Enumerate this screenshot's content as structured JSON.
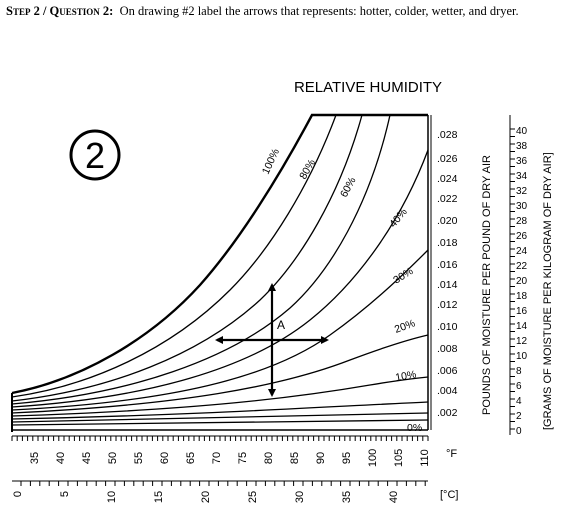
{
  "question": {
    "step_label": "Step 2 / Question 2:",
    "text": "On drawing #2 label the arrows that represents: hotter, colder, wetter, and dryer."
  },
  "drawing_number": "2",
  "chart_title": "RELATIVE HUMIDITY",
  "point_label": "A",
  "rh_curves": [
    {
      "label": "100%",
      "rh": 100
    },
    {
      "label": "80%",
      "rh": 80
    },
    {
      "label": "60%",
      "rh": 60
    },
    {
      "label": "40%",
      "rh": 40
    },
    {
      "label": "30%",
      "rh": 30
    },
    {
      "label": "20%",
      "rh": 20
    },
    {
      "label": "10%",
      "rh": 10
    },
    {
      "label": "0%",
      "rh": 0
    }
  ],
  "right_axis_lb": {
    "label": "POUNDS OF MOISTURE PER POUND OF DRY AIR",
    "ticks": [
      ".028",
      ".026",
      ".024",
      ".022",
      ".020",
      ".018",
      ".016",
      ".014",
      ".012",
      ".010",
      ".008",
      ".006",
      ".004",
      ".002"
    ]
  },
  "right_axis_g": {
    "label": "[GRAMS OF MOISTURE PER KILOGRAM OF DRY AIR]",
    "ticks": [
      "40",
      "38",
      "36",
      "34",
      "32",
      "30",
      "28",
      "26",
      "24",
      "22",
      "20",
      "18",
      "16",
      "14",
      "12",
      "10",
      "8",
      "6",
      "4",
      "2",
      "0"
    ]
  },
  "axis_f": {
    "unit": "°F",
    "ticks": [
      "35",
      "40",
      "45",
      "50",
      "55",
      "60",
      "65",
      "70",
      "75",
      "80",
      "85",
      "90",
      "95",
      "100",
      "105",
      "110"
    ]
  },
  "axis_c": {
    "unit": "[°C]",
    "ticks": [
      "0",
      "5",
      "10",
      "15",
      "20",
      "25",
      "30",
      "35",
      "40"
    ]
  }
}
